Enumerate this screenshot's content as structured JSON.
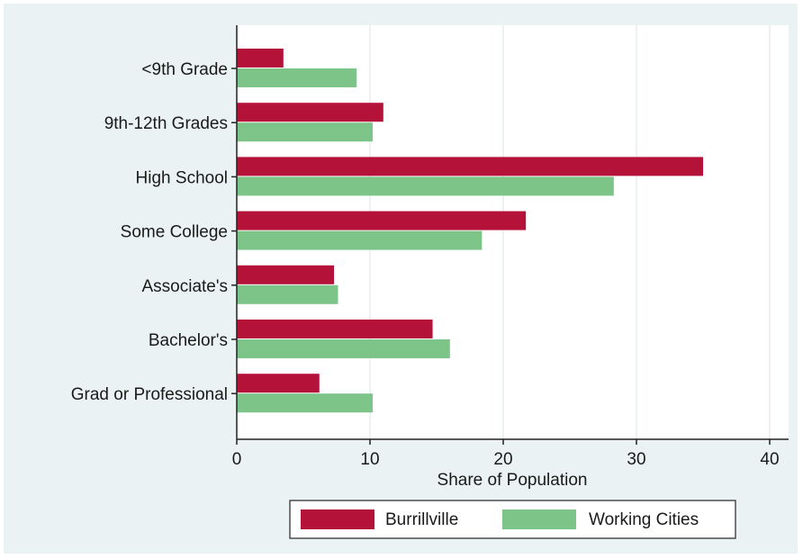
{
  "chart_data": {
    "type": "bar",
    "orientation": "horizontal",
    "categories": [
      "<9th Grade",
      "9th-12th Grades",
      "High School",
      "Some College",
      "Associate's",
      "Bachelor's",
      "Grad or Professional"
    ],
    "series": [
      {
        "name": "Burrillville",
        "color": "#b5123a",
        "values": [
          3.5,
          11,
          35,
          21.7,
          7.3,
          14.7,
          6.2
        ]
      },
      {
        "name": "Working Cities",
        "color": "#7cc487",
        "values": [
          9,
          10.2,
          28.3,
          18.4,
          7.6,
          16,
          10.2
        ]
      }
    ],
    "xlabel": "Share of Population",
    "ylabel": "",
    "title": "",
    "xlim": [
      0,
      40
    ],
    "xticks": [
      "0",
      "10",
      "20",
      "30",
      "40"
    ],
    "grid": true,
    "legend_position": "bottom"
  }
}
